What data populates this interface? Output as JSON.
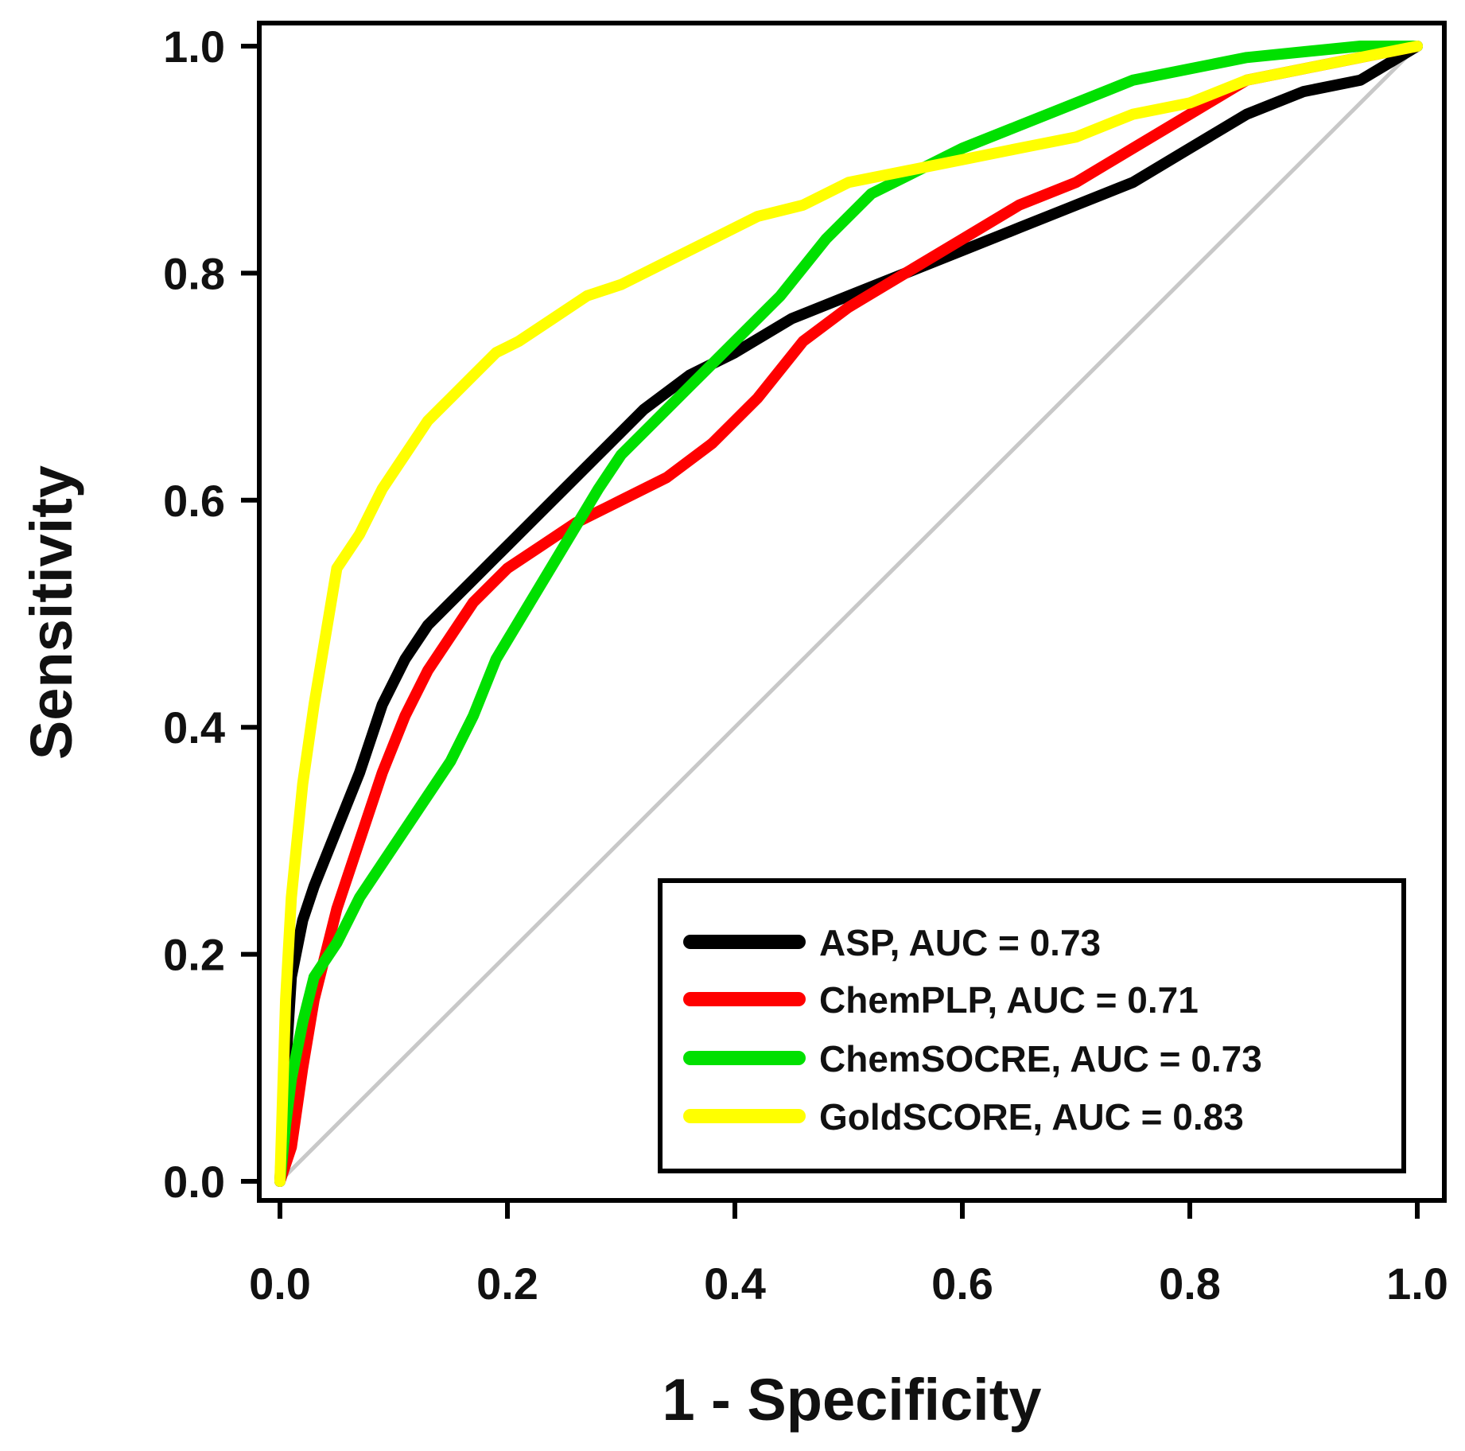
{
  "chart_data": {
    "type": "line",
    "title": "",
    "xlabel": "1 - Specificity",
    "ylabel": "Sensitivity",
    "xlim": [
      0,
      1
    ],
    "ylim": [
      0,
      1
    ],
    "xticks": [
      "0.0",
      "0.2",
      "0.4",
      "0.6",
      "0.8",
      "1.0"
    ],
    "yticks": [
      "0.0",
      "0.2",
      "0.4",
      "0.6",
      "0.8",
      "1.0"
    ],
    "grid": false,
    "legend_position": "bottom-right",
    "reference_line": {
      "name": "chance diagonal",
      "color": "#c8c8c8",
      "x": [
        0,
        1
      ],
      "y": [
        0,
        1
      ]
    },
    "series": [
      {
        "name": "ASP",
        "legend": "ASP, AUC = 0.73",
        "auc": 0.73,
        "color": "#000000",
        "x": [
          0,
          0.005,
          0.01,
          0.02,
          0.03,
          0.05,
          0.07,
          0.09,
          0.11,
          0.13,
          0.15,
          0.17,
          0.19,
          0.22,
          0.25,
          0.28,
          0.32,
          0.36,
          0.4,
          0.45,
          0.5,
          0.55,
          0.6,
          0.65,
          0.7,
          0.75,
          0.8,
          0.85,
          0.9,
          0.95,
          1.0
        ],
        "y": [
          0,
          0.1,
          0.18,
          0.23,
          0.26,
          0.31,
          0.36,
          0.42,
          0.46,
          0.49,
          0.51,
          0.53,
          0.55,
          0.58,
          0.61,
          0.64,
          0.68,
          0.71,
          0.73,
          0.76,
          0.78,
          0.8,
          0.82,
          0.84,
          0.86,
          0.88,
          0.91,
          0.94,
          0.96,
          0.97,
          1.0
        ]
      },
      {
        "name": "ChemPLP",
        "legend": "ChemPLP, AUC = 0.71",
        "auc": 0.71,
        "color": "#ff0000",
        "x": [
          0,
          0.01,
          0.02,
          0.03,
          0.05,
          0.07,
          0.09,
          0.11,
          0.13,
          0.15,
          0.17,
          0.2,
          0.23,
          0.26,
          0.3,
          0.34,
          0.38,
          0.42,
          0.46,
          0.5,
          0.55,
          0.6,
          0.65,
          0.7,
          0.75,
          0.8,
          0.85,
          0.9,
          0.95,
          1.0
        ],
        "y": [
          0,
          0.03,
          0.1,
          0.16,
          0.24,
          0.3,
          0.36,
          0.41,
          0.45,
          0.48,
          0.51,
          0.54,
          0.56,
          0.58,
          0.6,
          0.62,
          0.65,
          0.69,
          0.74,
          0.77,
          0.8,
          0.83,
          0.86,
          0.88,
          0.91,
          0.94,
          0.97,
          0.98,
          0.99,
          1.0
        ]
      },
      {
        "name": "ChemSOCRE",
        "legend": "ChemSOCRE, AUC = 0.73",
        "auc": 0.73,
        "color": "#00e000",
        "x": [
          0,
          0.005,
          0.01,
          0.02,
          0.03,
          0.05,
          0.07,
          0.09,
          0.11,
          0.13,
          0.15,
          0.17,
          0.19,
          0.22,
          0.25,
          0.28,
          0.3,
          0.33,
          0.36,
          0.4,
          0.44,
          0.48,
          0.52,
          0.56,
          0.6,
          0.65,
          0.7,
          0.75,
          0.8,
          0.85,
          0.9,
          0.95,
          1.0
        ],
        "y": [
          0,
          0.05,
          0.09,
          0.14,
          0.18,
          0.21,
          0.25,
          0.28,
          0.31,
          0.34,
          0.37,
          0.41,
          0.46,
          0.51,
          0.56,
          0.61,
          0.64,
          0.67,
          0.7,
          0.74,
          0.78,
          0.83,
          0.87,
          0.89,
          0.91,
          0.93,
          0.95,
          0.97,
          0.98,
          0.99,
          0.995,
          1.0,
          1.0
        ]
      },
      {
        "name": "GoldSCORE",
        "legend": "GoldSCORE, AUC = 0.83",
        "auc": 0.83,
        "color": "#ffff00",
        "x": [
          0,
          0.005,
          0.01,
          0.02,
          0.03,
          0.04,
          0.05,
          0.07,
          0.09,
          0.11,
          0.13,
          0.15,
          0.17,
          0.19,
          0.21,
          0.24,
          0.27,
          0.3,
          0.34,
          0.38,
          0.42,
          0.46,
          0.5,
          0.55,
          0.6,
          0.65,
          0.7,
          0.75,
          0.8,
          0.85,
          0.9,
          0.95,
          1.0
        ],
        "y": [
          0,
          0.16,
          0.25,
          0.35,
          0.42,
          0.48,
          0.54,
          0.57,
          0.61,
          0.64,
          0.67,
          0.69,
          0.71,
          0.73,
          0.74,
          0.76,
          0.78,
          0.79,
          0.81,
          0.83,
          0.85,
          0.86,
          0.88,
          0.89,
          0.9,
          0.91,
          0.92,
          0.94,
          0.95,
          0.97,
          0.98,
          0.99,
          1.0
        ]
      }
    ]
  }
}
